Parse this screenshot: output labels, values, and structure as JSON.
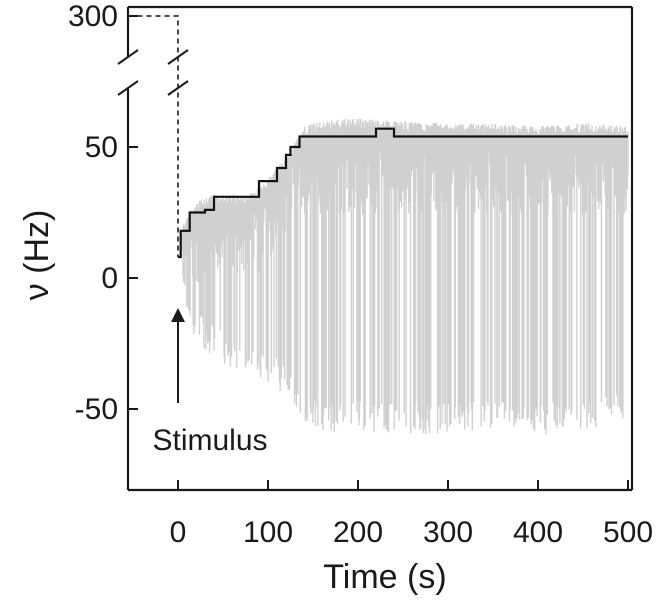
{
  "chart_data": {
    "type": "line",
    "title": "",
    "xlabel": "Time (s)",
    "ylabel": "ν (Hz)",
    "xlim": [
      -55,
      505
    ],
    "ylim": [
      -80,
      310
    ],
    "y_axis_break": [
      60,
      300
    ],
    "x_ticks": [
      0,
      100,
      200,
      300,
      400,
      500
    ],
    "x_tick_labels": [
      "0",
      "100",
      "200",
      "300",
      "400",
      "500"
    ],
    "y_ticks": [
      -50,
      0,
      50,
      300
    ],
    "y_tick_labels": [
      "-50",
      "0",
      "50",
      "300"
    ],
    "grid": false,
    "legend": "none",
    "annotations": [
      {
        "text": "Stimulus",
        "x": 0,
        "y": -62,
        "arrow_to": [
          0,
          -10
        ]
      }
    ],
    "pre_stimulus": {
      "style": "dashed",
      "x": [
        -55,
        0,
        0
      ],
      "y": [
        300,
        300,
        8
      ]
    },
    "series": [
      {
        "style": "stepped-line",
        "color": "#111111",
        "x": [
          0,
          3,
          3,
          13,
          13,
          30,
          30,
          40,
          40,
          60,
          60,
          90,
          90,
          110,
          110,
          120,
          120,
          125,
          125,
          135,
          135,
          220,
          220,
          240,
          240,
          500
        ],
        "y": [
          8,
          8,
          18,
          18,
          25,
          25,
          26,
          26,
          31,
          31,
          31,
          31,
          37,
          37,
          42,
          42,
          47,
          47,
          50,
          50,
          54,
          54,
          57,
          57,
          54,
          54
        ]
      },
      {
        "style": "noisy-band",
        "color": "#d0d0d0",
        "x": [
          5,
          20,
          40,
          60,
          80,
          100,
          120,
          140,
          160,
          200,
          240,
          300,
          350,
          400,
          450,
          500
        ],
        "upper": [
          20,
          29,
          32,
          32,
          32,
          38,
          46,
          58,
          60,
          61,
          60,
          59,
          59,
          58,
          59,
          58
        ],
        "lower": [
          -5,
          -25,
          -30,
          -35,
          -38,
          -40,
          -45,
          -55,
          -60,
          -58,
          -60,
          -60,
          -58,
          -60,
          -58,
          -55
        ]
      }
    ]
  }
}
